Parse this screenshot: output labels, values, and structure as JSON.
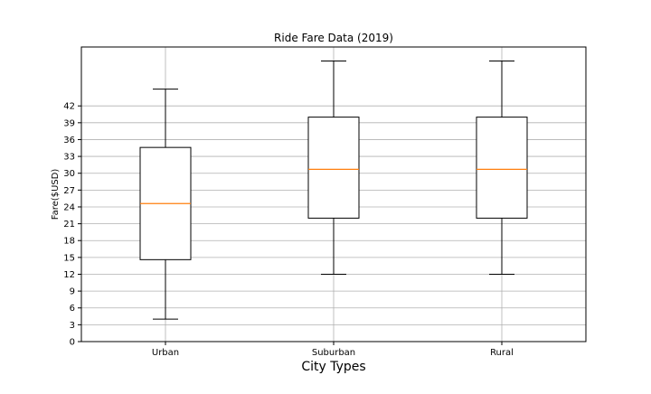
{
  "chart_data": {
    "type": "box",
    "title": "Ride Fare Data (2019)",
    "xlabel": "City Types",
    "ylabel": "Fare($USD)",
    "categories": [
      "Urban",
      "Suburban",
      "Rural"
    ],
    "boxes": [
      {
        "name": "Urban",
        "whisker_low": 4.0,
        "q1": 14.6,
        "median": 24.6,
        "q3": 34.6,
        "whisker_high": 45.0
      },
      {
        "name": "Suburban",
        "whisker_low": 12.0,
        "q1": 22.0,
        "median": 30.7,
        "q3": 40.0,
        "whisker_high": 50.0
      },
      {
        "name": "Rural",
        "whisker_low": 12.0,
        "q1": 22.0,
        "median": 30.7,
        "q3": 40.0,
        "whisker_high": 50.0
      }
    ],
    "yticks": [
      0,
      3,
      6,
      9,
      12,
      15,
      18,
      21,
      24,
      27,
      30,
      33,
      36,
      39,
      42
    ],
    "ylim": [
      0,
      52.5
    ],
    "grid": true,
    "colors": {
      "box": "#000000",
      "median": "#ff7f0e",
      "grid": "#b0b0b0"
    }
  }
}
